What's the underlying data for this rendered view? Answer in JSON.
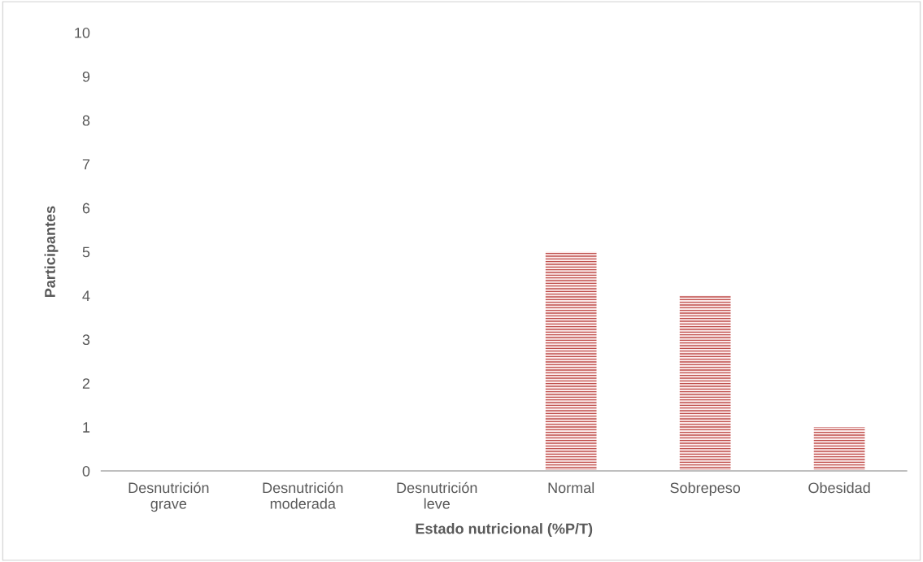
{
  "chart_data": {
    "type": "bar",
    "xlabel": "Estado nutricional (%P/T)",
    "ylabel": "Participantes",
    "categories": [
      "Desnutrición\ngrave",
      "Desnutrición\nmoderada",
      "Desnutrición\nleve",
      "Normal",
      "Sobrepeso",
      "Obesidad"
    ],
    "values": [
      0,
      0,
      0,
      5,
      4,
      1
    ],
    "color": "#c0504d",
    "ylim": [
      0,
      10
    ],
    "yticks": [
      0,
      1,
      2,
      3,
      4,
      5,
      6,
      7,
      8,
      9,
      10
    ],
    "grid": false,
    "legend": false
  }
}
